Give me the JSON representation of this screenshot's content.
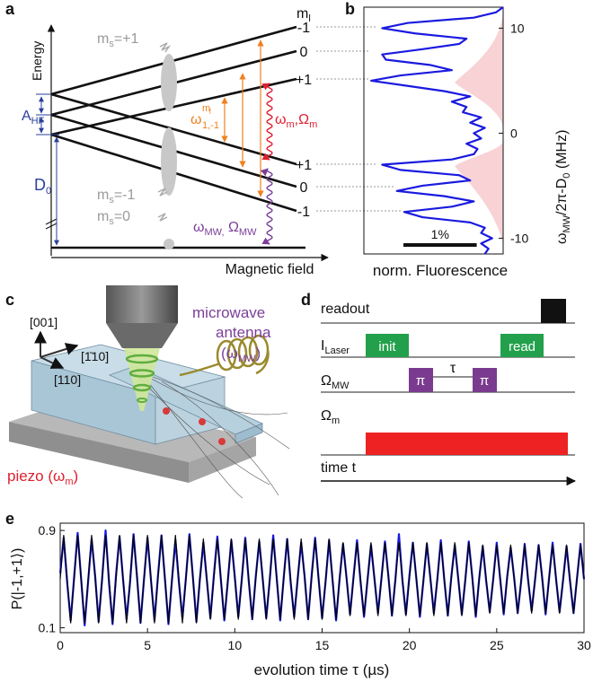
{
  "panel_a": {
    "label": "a",
    "energy": "Energy",
    "field": "Magnetic field",
    "ml": [
      "m",
      "l"
    ],
    "ms_plus": [
      "m",
      "s",
      "=+1"
    ],
    "ms_minus": [
      "m",
      "s",
      "=-1"
    ],
    "ms_zero": [
      "m",
      "s",
      "=0"
    ],
    "a_hf": [
      "A",
      "HF"
    ],
    "d0": [
      "D",
      "0"
    ],
    "level_labels": [
      "-1",
      "0",
      "+1",
      "+1",
      "0",
      "-1"
    ],
    "omega_nuc": [
      "ω",
      "m",
      "l",
      "1,-1"
    ],
    "omega_m": [
      "ω",
      "m",
      ",Ω",
      "m"
    ],
    "omega_mw": [
      "ω",
      "MW,",
      " Ω",
      "MW"
    ]
  },
  "panel_c": {
    "label": "c",
    "dir_001": "[001]",
    "dir_1bar10": "[1̄10]",
    "dir_110": "[110]",
    "antenna": [
      "microwave",
      "antenna",
      "(ω",
      "MW",
      ")"
    ],
    "piezo": [
      "piezo (ω",
      "m",
      ")"
    ]
  },
  "panel_d": {
    "label": "d",
    "readout": "readout",
    "laser": [
      "I",
      "Laser"
    ],
    "init": "init",
    "read": "read",
    "mw": [
      "Ω",
      "MW"
    ],
    "pi": [
      "π",
      "π"
    ],
    "tau": "τ",
    "mech": [
      "Ω",
      "m"
    ],
    "time": "time t"
  },
  "chart_data": [
    {
      "type": "line",
      "label": "b",
      "xlabel": "norm. Fluorescence",
      "ylabel": [
        "ω",
        "MW",
        "/2π-D",
        "0",
        " (MHz)"
      ],
      "scalebar": {
        "value": 1,
        "label": "1%"
      },
      "xlim": [
        98.1,
        100.0
      ],
      "ylim": [
        -11.5,
        12
      ],
      "yticks": [
        -10,
        0,
        10
      ],
      "y": [
        -11.5,
        -11,
        -10.5,
        -10,
        -9.5,
        -9,
        -8.5,
        -8,
        -7.5,
        -7,
        -6.5,
        -6,
        -5.5,
        -5,
        -4.5,
        -4,
        -3.5,
        -3,
        -2.5,
        -2,
        -1.5,
        -1,
        -0.5,
        0,
        0.5,
        1,
        1.5,
        2,
        2.5,
        3,
        3.5,
        4,
        4.5,
        5,
        5.5,
        6,
        6.5,
        7,
        7.5,
        8,
        8.5,
        9,
        9.5,
        10,
        10.5,
        11,
        11.5,
        12
      ],
      "series": [
        {
          "color": "#1a1adf",
          "values": [
            99.75,
            99.8,
            99.7,
            99.85,
            99.7,
            99.75,
            99.55,
            98.9,
            98.65,
            99.3,
            99.6,
            99.2,
            98.55,
            98.9,
            99.55,
            99.4,
            98.6,
            98.35,
            99.3,
            99.6,
            99.65,
            99.5,
            99.7,
            99.6,
            99.75,
            99.55,
            99.7,
            99.45,
            99.5,
            99.3,
            99.55,
            99.2,
            98.7,
            98.2,
            98.6,
            99.3,
            99.0,
            98.4,
            98.35,
            98.9,
            99.4,
            99.5,
            98.8,
            98.35,
            98.7,
            99.6,
            99.9,
            100.0
          ]
        }
      ]
    },
    {
      "type": "line",
      "label": "e",
      "xlabel": "evolution time τ (µs)",
      "ylabel": "P(|-1,+1⟩)",
      "xlim": [
        0,
        30
      ],
      "xticks": [
        0,
        5,
        10,
        15,
        20,
        25,
        30
      ],
      "ylim": [
        0.06,
        0.96
      ],
      "yticks": [
        0.1,
        0.9
      ],
      "x": [
        0,
        0.2,
        0.4,
        0.6,
        0.8,
        1,
        1.2,
        1.4,
        1.6,
        1.8,
        2,
        2.2,
        2.4,
        2.6,
        2.8,
        3,
        3.2,
        3.4,
        3.6,
        3.8,
        4,
        4.2,
        4.4,
        4.6,
        4.8,
        5,
        5.2,
        5.4,
        5.6,
        5.8,
        6,
        6.2,
        6.4,
        6.6,
        6.8,
        7,
        7.2,
        7.4,
        7.6,
        7.8,
        8,
        8.2,
        8.4,
        8.6,
        8.8,
        9,
        9.2,
        9.4,
        9.6,
        9.8,
        10,
        10.2,
        10.4,
        10.6,
        10.8,
        11,
        11.2,
        11.4,
        11.6,
        11.8,
        12,
        12.2,
        12.4,
        12.6,
        12.8,
        13,
        13.2,
        13.4,
        13.6,
        13.8,
        14,
        14.2,
        14.4,
        14.6,
        14.8,
        15,
        15.2,
        15.4,
        15.6,
        15.8,
        16,
        16.2,
        16.4,
        16.6,
        16.8,
        17,
        17.2,
        17.4,
        17.6,
        17.8,
        18,
        18.2,
        18.4,
        18.6,
        18.8,
        19,
        19.2,
        19.4,
        19.6,
        19.8,
        20,
        20.2,
        20.4,
        20.6,
        20.8,
        21,
        21.2,
        21.4,
        21.6,
        21.8,
        22,
        22.2,
        22.4,
        22.6,
        22.8,
        23,
        23.2,
        23.4,
        23.6,
        23.8,
        24,
        24.2,
        24.4,
        24.6,
        24.8,
        25,
        25.2,
        25.4,
        25.6,
        25.8,
        26,
        26.2,
        26.4,
        26.6,
        26.8,
        27,
        27.2,
        27.4,
        27.6,
        27.8,
        28,
        28.2,
        28.4,
        28.6,
        28.8,
        29,
        29.2,
        29.4,
        29.6,
        29.8,
        30
      ],
      "series": [
        {
          "color": "#1a1adf",
          "values": [
            0.55,
            0.84,
            0.47,
            0.16,
            0.52,
            0.88,
            0.5,
            0.12,
            0.48,
            0.83,
            0.53,
            0.15,
            0.5,
            0.9,
            0.46,
            0.13,
            0.54,
            0.85,
            0.5,
            0.17,
            0.47,
            0.87,
            0.52,
            0.14,
            0.5,
            0.84,
            0.49,
            0.16,
            0.53,
            0.86,
            0.5,
            0.13,
            0.49,
            0.82,
            0.47,
            0.18,
            0.51,
            0.87,
            0.52,
            0.15,
            0.5,
            0.8,
            0.49,
            0.18,
            0.53,
            0.85,
            0.5,
            0.16,
            0.48,
            0.82,
            0.52,
            0.19,
            0.5,
            0.84,
            0.48,
            0.17,
            0.52,
            0.81,
            0.5,
            0.18,
            0.49,
            0.86,
            0.51,
            0.16,
            0.51,
            0.83,
            0.47,
            0.19,
            0.5,
            0.8,
            0.52,
            0.17,
            0.53,
            0.84,
            0.5,
            0.18,
            0.48,
            0.82,
            0.49,
            0.16,
            0.5,
            0.79,
            0.51,
            0.21,
            0.52,
            0.82,
            0.48,
            0.19,
            0.49,
            0.78,
            0.5,
            0.22,
            0.51,
            0.81,
            0.52,
            0.2,
            0.5,
            0.87,
            0.49,
            0.21,
            0.53,
            0.8,
            0.5,
            0.19,
            0.48,
            0.79,
            0.51,
            0.22,
            0.5,
            0.82,
            0.49,
            0.2,
            0.52,
            0.78,
            0.5,
            0.21,
            0.49,
            0.81,
            0.52,
            0.19,
            0.51,
            0.77,
            0.48,
            0.23,
            0.5,
            0.8,
            0.5,
            0.21,
            0.52,
            0.76,
            0.51,
            0.22,
            0.48,
            0.79,
            0.49,
            0.24,
            0.5,
            0.78,
            0.52,
            0.21,
            0.51,
            0.8,
            0.5,
            0.23,
            0.49,
            0.77,
            0.48,
            0.22,
            0.51,
            0.79,
            0.5
          ]
        },
        {
          "color": "#000000",
          "values": [
            0.5,
            0.86,
            0.5,
            0.14,
            0.5,
            0.86,
            0.5,
            0.14,
            0.5,
            0.86,
            0.5,
            0.14,
            0.5,
            0.86,
            0.5,
            0.14,
            0.5,
            0.86,
            0.5,
            0.14,
            0.5,
            0.86,
            0.5,
            0.14,
            0.5,
            0.86,
            0.5,
            0.14,
            0.5,
            0.86,
            0.5,
            0.14,
            0.5,
            0.86,
            0.5,
            0.14,
            0.5,
            0.86,
            0.5,
            0.14,
            0.5,
            0.83,
            0.5,
            0.17,
            0.5,
            0.83,
            0.5,
            0.17,
            0.5,
            0.83,
            0.5,
            0.17,
            0.5,
            0.83,
            0.5,
            0.17,
            0.5,
            0.83,
            0.5,
            0.17,
            0.5,
            0.83,
            0.5,
            0.17,
            0.5,
            0.83,
            0.5,
            0.17,
            0.5,
            0.83,
            0.5,
            0.17,
            0.5,
            0.83,
            0.5,
            0.17,
            0.5,
            0.83,
            0.5,
            0.17,
            0.5,
            0.8,
            0.5,
            0.2,
            0.5,
            0.8,
            0.5,
            0.2,
            0.5,
            0.8,
            0.5,
            0.2,
            0.5,
            0.8,
            0.5,
            0.2,
            0.5,
            0.8,
            0.5,
            0.2,
            0.5,
            0.8,
            0.5,
            0.2,
            0.5,
            0.8,
            0.5,
            0.2,
            0.5,
            0.8,
            0.5,
            0.2,
            0.5,
            0.8,
            0.5,
            0.2,
            0.5,
            0.8,
            0.5,
            0.2,
            0.5,
            0.78,
            0.5,
            0.22,
            0.5,
            0.78,
            0.5,
            0.22,
            0.5,
            0.78,
            0.5,
            0.22,
            0.5,
            0.78,
            0.5,
            0.22,
            0.5,
            0.78,
            0.5,
            0.22,
            0.5,
            0.78,
            0.5,
            0.22,
            0.5,
            0.78,
            0.5,
            0.22,
            0.5,
            0.78,
            0.5
          ]
        }
      ]
    }
  ]
}
